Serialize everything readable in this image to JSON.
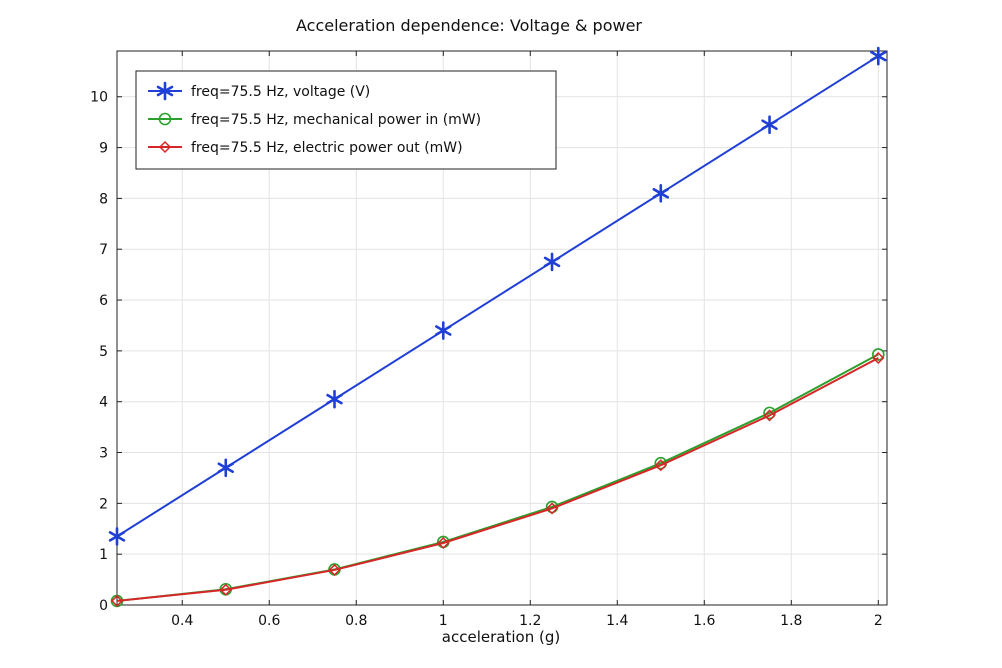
{
  "chart_data": {
    "type": "line",
    "title": "Acceleration dependence: Voltage & power",
    "xlabel": "acceleration (g)",
    "ylabel": "",
    "xlim": [
      0.25,
      2.02
    ],
    "ylim": [
      0,
      10.9
    ],
    "x_ticks": [
      0.4,
      0.6,
      0.8,
      1,
      1.2,
      1.4,
      1.6,
      1.8,
      2
    ],
    "x_tick_labels": [
      "0.4",
      "0.6",
      "0.8",
      "1",
      "1.2",
      "1.4",
      "1.6",
      "1.8",
      "2"
    ],
    "y_ticks": [
      0,
      1,
      2,
      3,
      4,
      5,
      6,
      7,
      8,
      9,
      10
    ],
    "y_tick_labels": [
      "0",
      "1",
      "2",
      "3",
      "4",
      "5",
      "6",
      "7",
      "8",
      "9",
      "10"
    ],
    "grid": true,
    "legend_position": "top-left",
    "x": [
      0.25,
      0.5,
      0.75,
      1.0,
      1.25,
      1.5,
      1.75,
      2.0
    ],
    "series": [
      {
        "name": "freq=75.5 Hz, voltage (V)",
        "color": "#1f3fd6",
        "marker": "asterisk",
        "values": [
          1.35,
          2.7,
          4.05,
          5.4,
          6.75,
          8.1,
          9.45,
          10.8
        ]
      },
      {
        "name": "freq=75.5 Hz, mechanical power in (mW)",
        "color": "#2ca02c",
        "marker": "circle",
        "values": [
          0.08,
          0.31,
          0.7,
          1.24,
          1.93,
          2.79,
          3.78,
          4.93
        ]
      },
      {
        "name": "freq=75.5 Hz, electric power out (mW)",
        "color": "#d62728",
        "marker": "diamond",
        "values": [
          0.08,
          0.3,
          0.69,
          1.22,
          1.9,
          2.75,
          3.73,
          4.86
        ]
      }
    ]
  }
}
